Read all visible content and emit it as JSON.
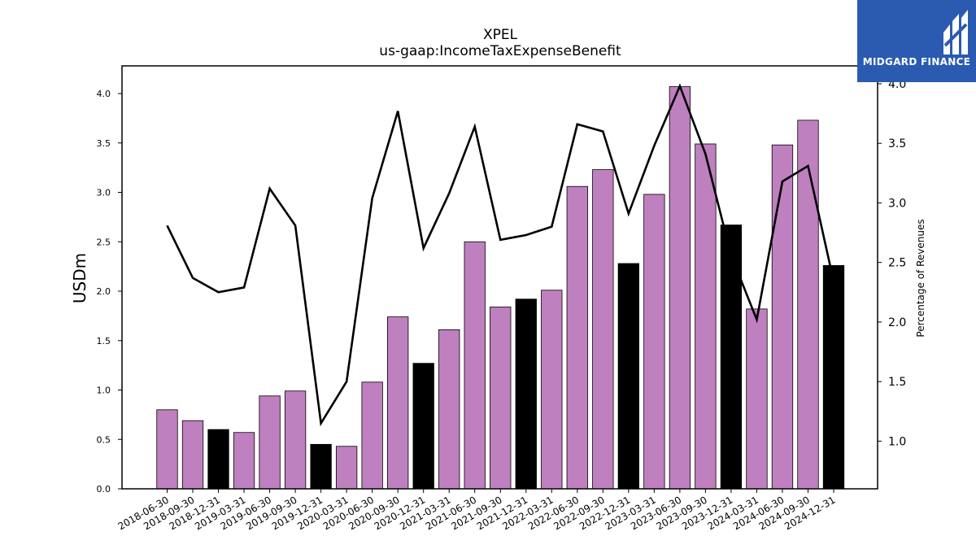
{
  "chart_data": {
    "type": "bar",
    "title": "XPEL",
    "subtitle": "us-gaap:IncomeTaxExpenseBenefit",
    "ylabel": "USDm",
    "y2label": "Percentage of Revenues",
    "ylim": [
      0,
      4.28
    ],
    "y2lim": [
      0.6,
      4.15
    ],
    "yticks": [
      "0.0",
      "0.5",
      "1.0",
      "1.5",
      "2.0",
      "2.5",
      "3.0",
      "3.5",
      "4.0"
    ],
    "y2ticks": [
      "1.0",
      "1.5",
      "2.0",
      "2.5",
      "3.0",
      "3.5",
      "4.0"
    ],
    "categories": [
      "2018-06-30",
      "2018-09-30",
      "2018-12-31",
      "2019-03-31",
      "2019-06-30",
      "2019-09-30",
      "2019-12-31",
      "2020-03-31",
      "2020-06-30",
      "2020-09-30",
      "2020-12-31",
      "2021-03-31",
      "2021-06-30",
      "2021-09-30",
      "2021-12-31",
      "2022-03-31",
      "2022-06-30",
      "2022-09-30",
      "2022-12-31",
      "2023-03-31",
      "2023-06-30",
      "2023-09-30",
      "2023-12-31",
      "2024-03-31",
      "2024-06-30",
      "2024-09-30",
      "2024-12-31"
    ],
    "series": [
      {
        "type": "bar",
        "values": [
          0.8,
          0.69,
          0.6,
          0.57,
          0.94,
          0.99,
          0.45,
          0.43,
          1.08,
          1.74,
          1.27,
          1.61,
          2.5,
          1.84,
          1.92,
          2.01,
          3.06,
          3.23,
          2.28,
          2.98,
          4.07,
          3.49,
          2.67,
          1.82,
          3.48,
          3.73,
          2.26
        ],
        "highlight": [
          false,
          false,
          true,
          false,
          false,
          false,
          true,
          false,
          false,
          false,
          true,
          false,
          false,
          false,
          true,
          false,
          false,
          false,
          true,
          false,
          false,
          false,
          true,
          false,
          false,
          false,
          true
        ]
      },
      {
        "type": "line",
        "axis": "right",
        "values": [
          2.81,
          2.37,
          2.25,
          2.29,
          3.12,
          2.81,
          1.15,
          1.5,
          3.04,
          3.77,
          2.62,
          3.08,
          3.64,
          2.69,
          2.73,
          2.8,
          3.66,
          3.6,
          2.91,
          3.48,
          3.98,
          3.41,
          2.56,
          2.02,
          3.18,
          3.31,
          2.34
        ]
      }
    ],
    "colors": {
      "bar": "#bf80bf",
      "bar_highlight": "#000000",
      "line": "#000000"
    },
    "grid": false
  },
  "logo": {
    "text": "MIDGARD FINANCE"
  }
}
